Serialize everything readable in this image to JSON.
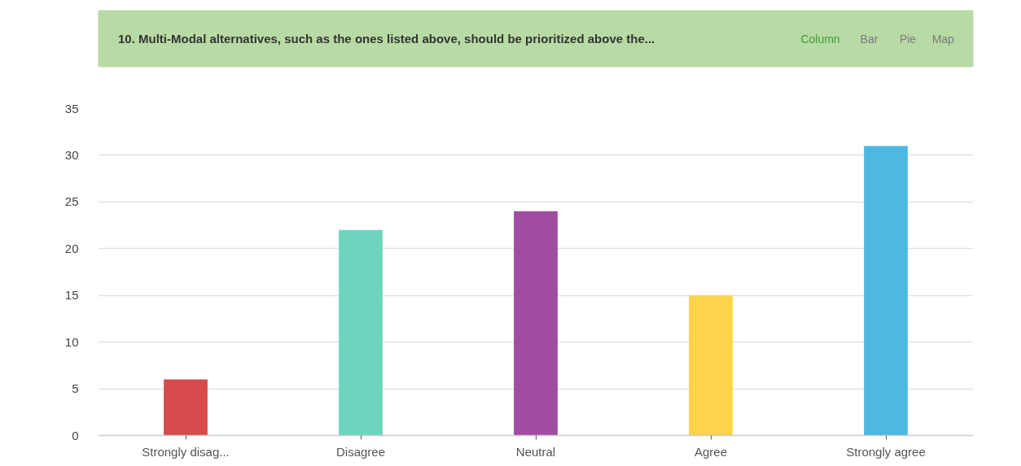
{
  "chart_data": {
    "type": "bar",
    "title": "10. Multi-Modal alternatives, such as the ones listed above, should be prioritized above the...",
    "categories": [
      "Strongly disag...",
      "Disagree",
      "Neutral",
      "Agree",
      "Strongly agree"
    ],
    "values": [
      6,
      22,
      24,
      15,
      31
    ],
    "colors": [
      "#d64b4b",
      "#6dd5bd",
      "#a24ba3",
      "#fcd34a",
      "#4db9e2"
    ],
    "ylim": [
      0,
      35
    ],
    "yticks": [
      0,
      5,
      10,
      15,
      20,
      25,
      30,
      35
    ],
    "grid": "y",
    "annotations": [
      "Column",
      "Bar",
      "Pie",
      "Map"
    ]
  }
}
